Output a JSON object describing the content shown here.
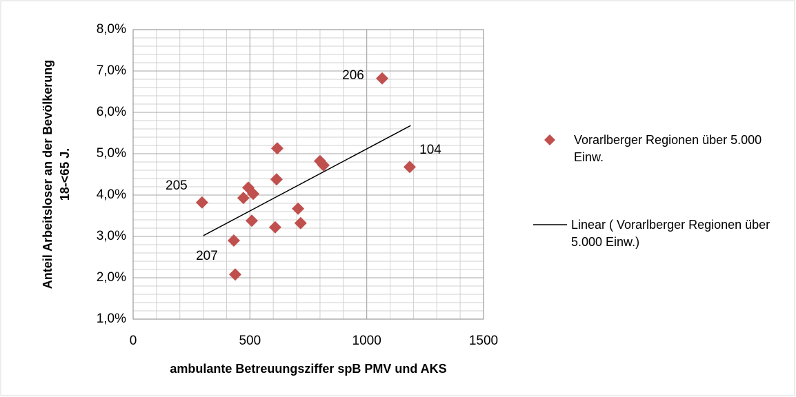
{
  "chart_data": {
    "type": "scatter",
    "xlabel": "ambulante Betreuungsziffer spB PMV und AKS",
    "ylabel": [
      "Anteil Arbeitsloser an der Bevölkerung",
      "18-<65 J."
    ],
    "xlim": [
      0,
      1500
    ],
    "xticks": [
      0,
      500,
      1000,
      1500
    ],
    "ylim": [
      1.0,
      8.0
    ],
    "yticks": [
      {
        "value": 1.0,
        "label": "1,0%"
      },
      {
        "value": 2.0,
        "label": "2,0%"
      },
      {
        "value": 3.0,
        "label": "3,0%"
      },
      {
        "value": 4.0,
        "label": "4,0%"
      },
      {
        "value": 5.0,
        "label": "5,0%"
      },
      {
        "value": 6.0,
        "label": "6,0%"
      },
      {
        "value": 7.0,
        "label": "7,0%"
      },
      {
        "value": 8.0,
        "label": "8,0%"
      }
    ],
    "grid": true,
    "minor_grid": {
      "x": 100,
      "y": 0.2
    },
    "series": [
      {
        "name": "Vorarlberger Regionen über 5.000 Einw.",
        "color": "#c0504d",
        "x": [
          1066,
          1184,
          295,
          431,
          437,
          617,
          614,
          800,
          815,
          493,
          472,
          514,
          706,
          717,
          508,
          608
        ],
        "values": [
          6.82,
          4.68,
          3.82,
          2.9,
          2.08,
          5.13,
          4.38,
          4.82,
          4.72,
          4.18,
          3.93,
          4.03,
          3.67,
          3.32,
          3.38,
          3.22
        ],
        "point_labels": [
          "206",
          "104",
          "205",
          "207",
          null,
          null,
          null,
          null,
          null,
          null,
          null,
          null,
          null,
          null,
          null,
          null
        ]
      }
    ],
    "trendline": {
      "name": "Linear ( Vorarlberger Regionen über 5.000 Einw.)",
      "color": "#000000",
      "x": [
        301,
        1188
      ],
      "values": [
        3.02,
        5.68
      ]
    },
    "legend": "right"
  }
}
